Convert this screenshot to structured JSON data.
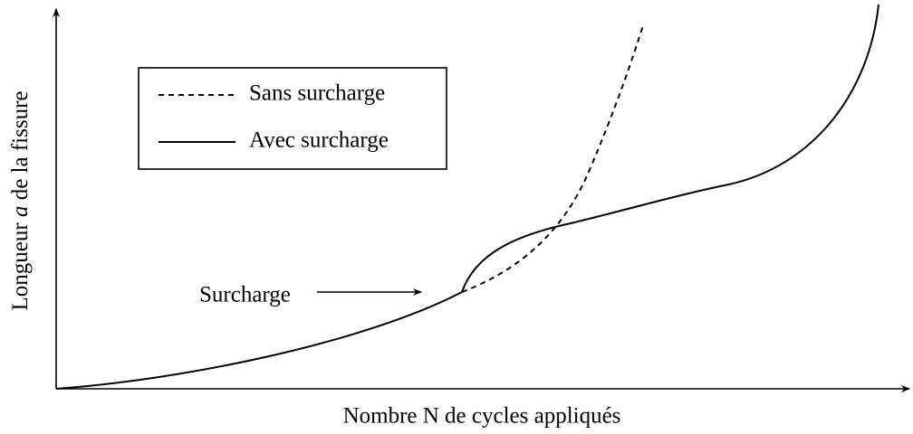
{
  "x_axis_label": "Nombre N de cycles appliqués",
  "y_axis_label": {
    "before": "Longueur",
    "variable": "a",
    "after": "de la fissure"
  },
  "legend": [
    {
      "label": "Sans surcharge",
      "style": "dashed"
    },
    {
      "label": "Avec surcharge",
      "style": "solid"
    }
  ],
  "annotation": "Surcharge"
}
